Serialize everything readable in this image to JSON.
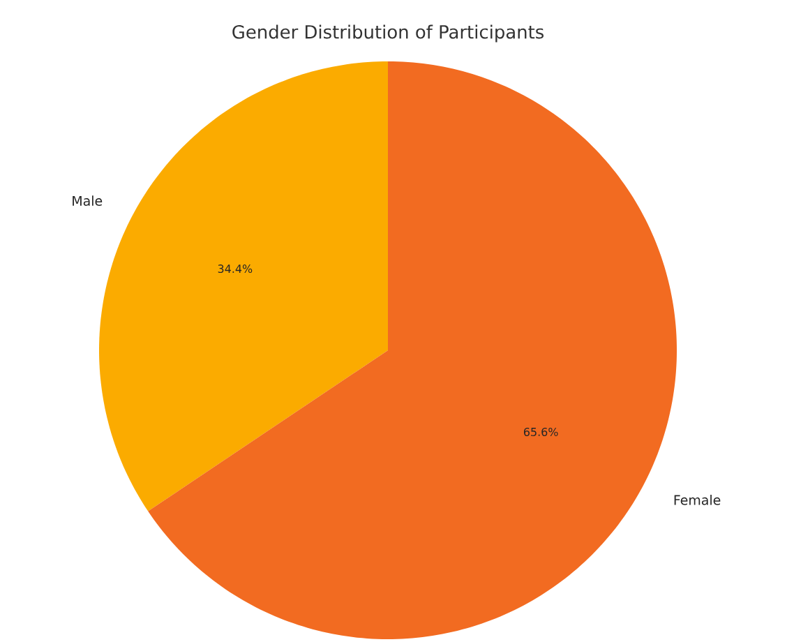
{
  "chart_data": {
    "type": "pie",
    "title": "Gender Distribution of Participants",
    "categories": [
      "Male",
      "Female"
    ],
    "values": [
      34.4,
      65.6
    ],
    "colors": [
      "#fbab00",
      "#f26b21"
    ],
    "value_labels": [
      "34.4%",
      "65.6%"
    ]
  }
}
